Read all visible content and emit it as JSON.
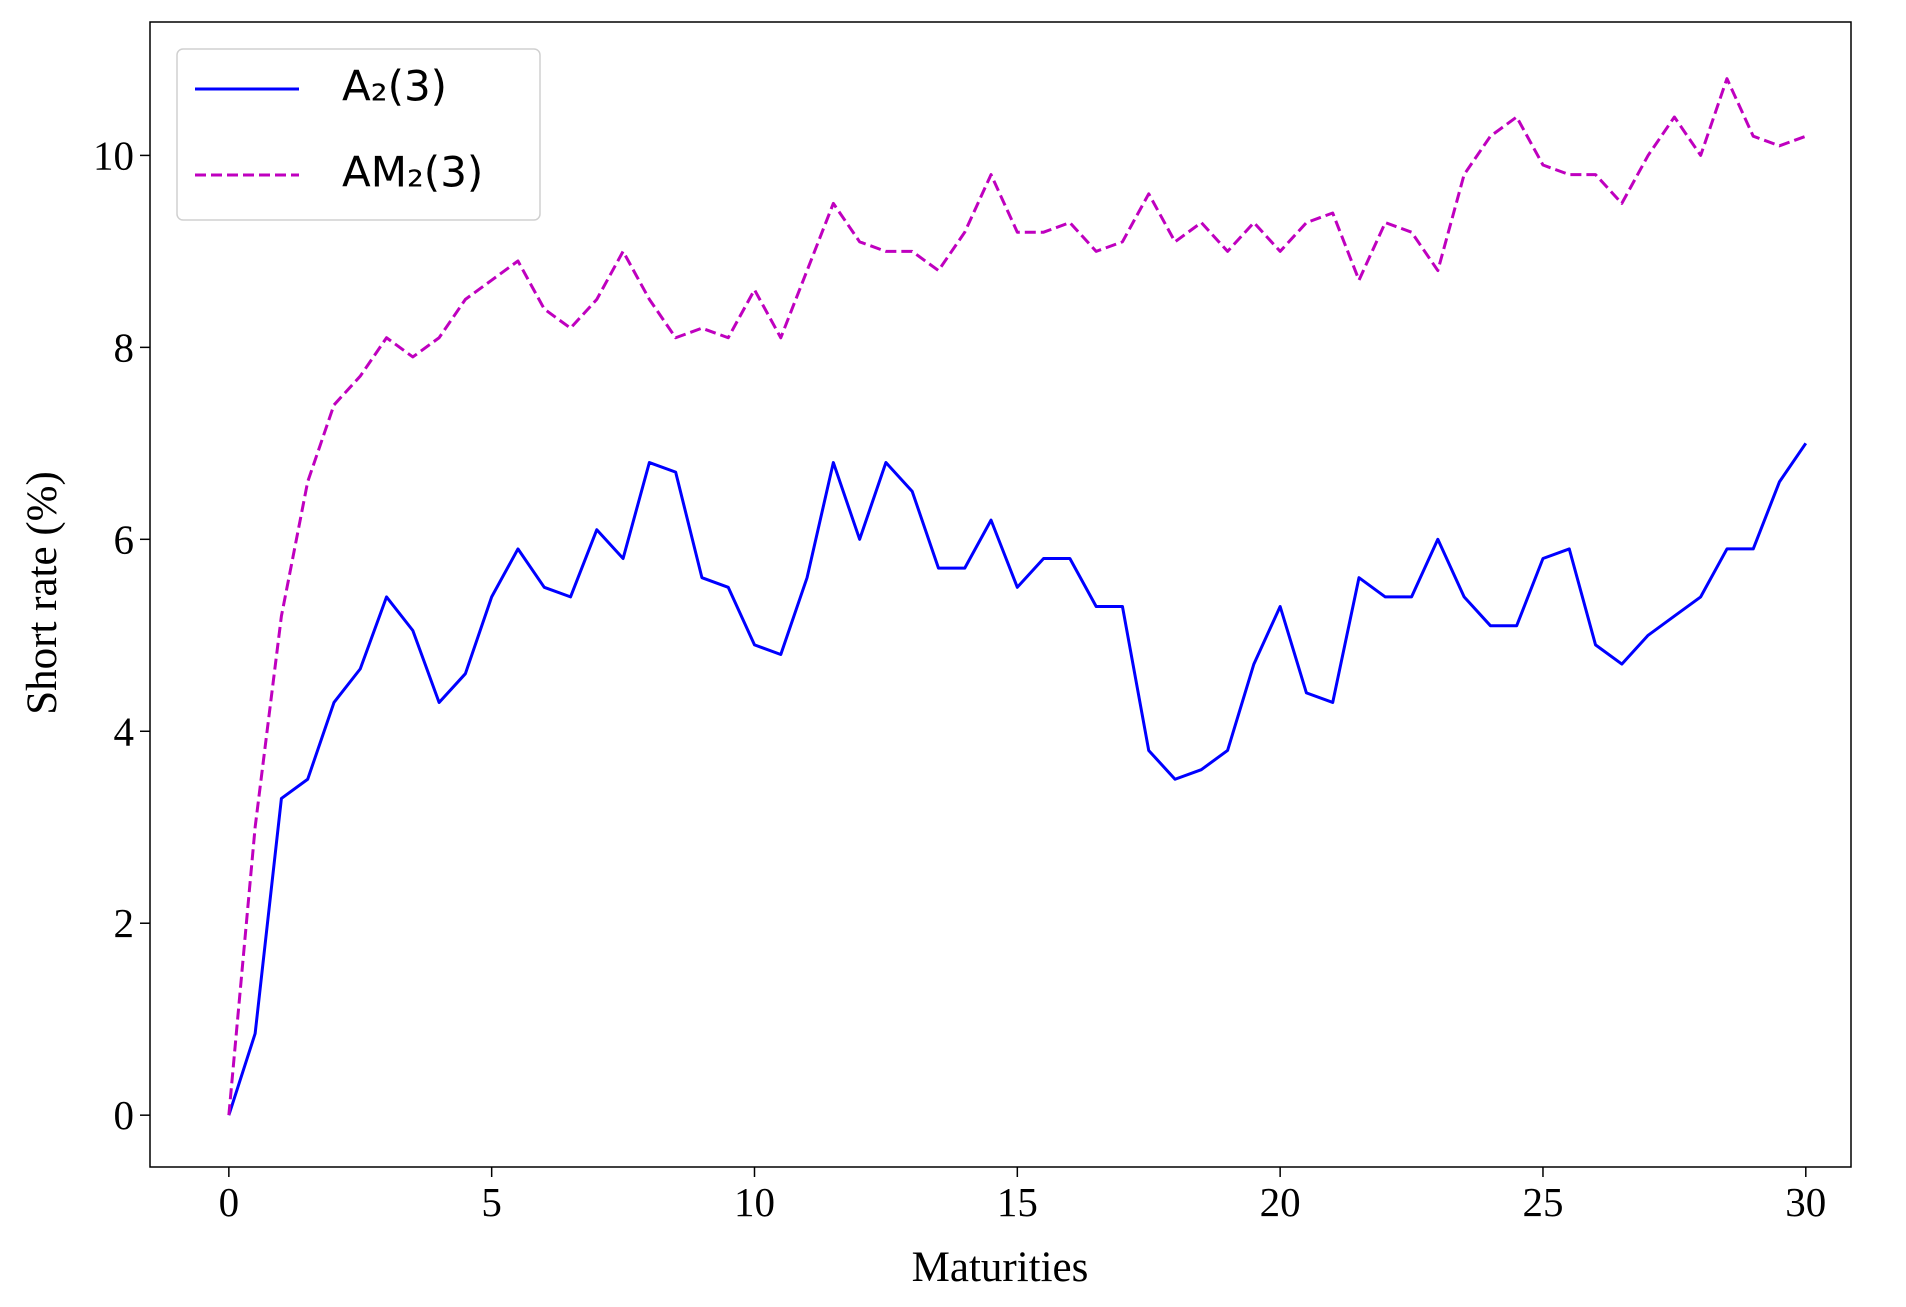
{
  "chart_data": {
    "type": "line",
    "xlabel": "Maturities",
    "ylabel": "Short rate (%)",
    "x": [
      0,
      0.5,
      1,
      1.5,
      2,
      2.5,
      3,
      3.5,
      4,
      4.5,
      5,
      5.5,
      6,
      6.5,
      7,
      7.5,
      8,
      8.5,
      9,
      9.5,
      10,
      10.5,
      11,
      11.5,
      12,
      12.5,
      13,
      13.5,
      14,
      14.5,
      15,
      15.5,
      16,
      16.5,
      17,
      17.5,
      18,
      18.5,
      19,
      19.5,
      20,
      20.5,
      21,
      21.5,
      22,
      22.5,
      23,
      23.5,
      24,
      24.5,
      25,
      25.5,
      26,
      26.5,
      27,
      27.5,
      28,
      28.5,
      29,
      29.5,
      30
    ],
    "series": [
      {
        "name": "A₂(3)",
        "color": "#0000ff",
        "dash": false,
        "values": [
          0,
          0.85,
          3.3,
          3.5,
          4.3,
          4.65,
          5.4,
          5.05,
          4.3,
          4.6,
          5.4,
          5.9,
          5.5,
          5.4,
          6.1,
          5.8,
          6.8,
          6.7,
          5.6,
          5.5,
          4.9,
          4.8,
          5.6,
          6.8,
          6.0,
          6.8,
          6.5,
          5.7,
          5.7,
          6.2,
          5.5,
          5.8,
          5.8,
          5.3,
          5.3,
          3.8,
          3.5,
          3.6,
          3.8,
          4.7,
          5.3,
          4.4,
          4.3,
          5.6,
          5.4,
          5.4,
          6.0,
          5.4,
          5.1,
          5.1,
          5.8,
          5.9,
          4.9,
          4.7,
          5.0,
          5.2,
          5.4,
          5.9,
          5.9,
          6.6,
          7.0
        ]
      },
      {
        "name": "AM₂(3)",
        "color": "#bf00bf",
        "dash": true,
        "values": [
          0,
          3.0,
          5.2,
          6.6,
          7.4,
          7.7,
          8.1,
          7.9,
          8.1,
          8.5,
          8.7,
          8.9,
          8.4,
          8.2,
          8.5,
          9.0,
          8.5,
          8.1,
          8.2,
          8.1,
          8.6,
          8.1,
          8.8,
          9.5,
          9.1,
          9.0,
          9.0,
          8.8,
          9.2,
          9.8,
          9.2,
          9.2,
          9.3,
          9.0,
          9.1,
          9.6,
          9.1,
          9.3,
          9.0,
          9.3,
          9.0,
          9.3,
          9.4,
          8.7,
          9.3,
          9.2,
          8.8,
          9.8,
          10.2,
          10.4,
          9.9,
          9.8,
          9.8,
          9.5,
          10.0,
          10.4,
          10.0,
          10.8,
          10.2,
          10.1,
          10.2
        ]
      }
    ],
    "xlim": [
      -1.5,
      30.86
    ],
    "ylim": [
      -0.54,
      11.39
    ],
    "xticks": [
      0,
      5,
      10,
      15,
      20,
      25,
      30
    ],
    "yticks": [
      0,
      2,
      4,
      6,
      8,
      10
    ],
    "legend": "upper left",
    "grid": false
  }
}
